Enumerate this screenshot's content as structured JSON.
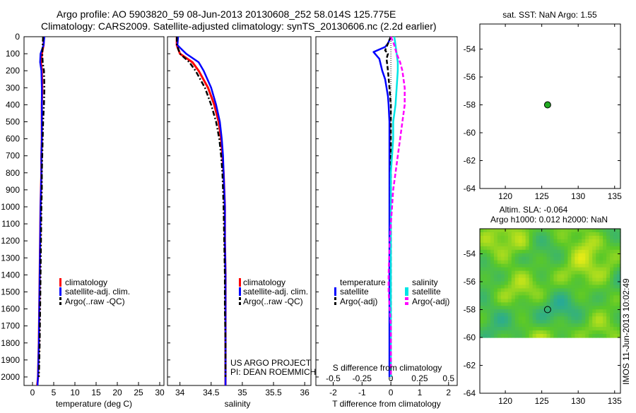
{
  "header": {
    "title_line1": "Argo profile: AO 5903820_59 08-Jun-2013 20130608_252 58.014S 125.775E",
    "title_line2": "Climatology: CARS2009. Satellite-adjusted climatology: synTS_20130606.nc (2.2d earlier)"
  },
  "colors": {
    "climatology": "#ff0000",
    "satellite": "#0000ff",
    "argo": "#000000",
    "salinity_satellite": "#00e5e5",
    "salinity_argo": "#ff00ff",
    "map_marker": "#22aa22"
  },
  "depth_ticks": [
    "0",
    "100",
    "200",
    "300",
    "400",
    "500",
    "600",
    "700",
    "800",
    "900",
    "1000",
    "1100",
    "1200",
    "1300",
    "1400",
    "1500",
    "1600",
    "1700",
    "1800",
    "1900",
    "2000"
  ],
  "chart_data": [
    {
      "type": "line",
      "panel": "temperature",
      "xlabel": "temperature (deg C)",
      "xticks": [
        "0",
        "5",
        "10",
        "15",
        "20",
        "25",
        "30"
      ],
      "xlim": [
        -2,
        31
      ],
      "ylim": [
        2050,
        0
      ],
      "y_axis": "depth (inverted)",
      "series": [
        {
          "name": "climatology",
          "x": [
            2.7,
            2.6,
            2.2,
            2.0,
            2.2,
            2.3,
            2.2,
            2.2,
            2.2,
            2.1,
            2.1,
            2.0,
            1.9,
            1.8,
            1.7,
            1.6,
            1.5,
            1.4,
            1.3,
            1.2,
            1.1
          ],
          "y": [
            0,
            50,
            100,
            150,
            200,
            300,
            400,
            500,
            600,
            700,
            800,
            900,
            1000,
            1200,
            1400,
            1600,
            1800,
            1900,
            2000,
            2030,
            2050
          ]
        },
        {
          "name": "satellite-adj. clim.",
          "x": [
            2.8,
            2.6,
            1.9,
            1.8,
            2.1,
            2.2,
            2.2,
            2.2,
            2.2,
            2.1,
            2.1,
            2.0,
            1.9,
            1.8,
            1.7,
            1.6,
            1.5,
            1.4,
            1.3,
            1.2,
            1.2
          ],
          "y": [
            0,
            50,
            100,
            150,
            200,
            300,
            400,
            500,
            600,
            700,
            800,
            900,
            1000,
            1200,
            1400,
            1600,
            1800,
            1900,
            2000,
            2030,
            2050
          ]
        },
        {
          "name": "Argo(..raw -QC)",
          "x": [
            2.5,
            2.4,
            2.3,
            2.4,
            2.7,
            2.8,
            2.7,
            2.5,
            2.4,
            2.3,
            2.2,
            2.2,
            2.1,
            2.0,
            1.9,
            1.8,
            1.7,
            1.6,
            1.5
          ],
          "y": [
            0,
            50,
            100,
            150,
            200,
            300,
            400,
            500,
            600,
            700,
            800,
            900,
            1000,
            1200,
            1400,
            1600,
            1800,
            1900,
            2000
          ]
        }
      ],
      "legend": [
        "climatology",
        "satellite-adj. clim.",
        "Argo(..raw -QC)"
      ]
    },
    {
      "type": "line",
      "panel": "salinity",
      "xlabel": "salinity",
      "xticks": [
        "34",
        "34.5",
        "35",
        "35.5",
        "36"
      ],
      "xlim": [
        33.8,
        36.1
      ],
      "ylim": [
        2050,
        0
      ],
      "series": [
        {
          "name": "climatology",
          "x": [
            33.95,
            33.95,
            34.0,
            34.2,
            34.3,
            34.45,
            34.55,
            34.62,
            34.66,
            34.68,
            34.7,
            34.71,
            34.72,
            34.72,
            34.73,
            34.73,
            34.73,
            34.73,
            34.73,
            34.73
          ],
          "y": [
            0,
            50,
            100,
            150,
            200,
            300,
            400,
            500,
            600,
            700,
            800,
            900,
            1000,
            1200,
            1400,
            1600,
            1800,
            1900,
            2000,
            2050
          ]
        },
        {
          "name": "satellite-adj. clim.",
          "x": [
            33.97,
            33.96,
            34.1,
            34.3,
            34.38,
            34.5,
            34.58,
            34.64,
            34.67,
            34.69,
            34.7,
            34.71,
            34.72,
            34.72,
            34.73,
            34.73,
            34.73,
            34.73,
            34.73,
            34.73
          ],
          "y": [
            0,
            50,
            100,
            150,
            200,
            300,
            400,
            500,
            600,
            700,
            800,
            900,
            1000,
            1200,
            1400,
            1600,
            1800,
            1900,
            2000,
            2050
          ]
        },
        {
          "name": "Argo(..raw -QC)",
          "x": [
            33.95,
            33.95,
            34.0,
            34.15,
            34.25,
            34.4,
            34.5,
            34.58,
            34.63,
            34.66,
            34.68,
            34.69,
            34.7,
            34.71,
            34.72,
            34.72,
            34.73,
            34.73,
            34.73
          ],
          "y": [
            0,
            50,
            100,
            150,
            200,
            300,
            400,
            500,
            600,
            700,
            800,
            900,
            1000,
            1200,
            1400,
            1600,
            1800,
            1900,
            2000
          ]
        }
      ],
      "legend": [
        "climatology",
        "satellite-adj. clim.",
        "Argo(..raw -QC)"
      ],
      "annotation": [
        "US ARGO PROJECT",
        "PI: DEAN ROEMMICH"
      ]
    },
    {
      "type": "line",
      "panel": "difference",
      "xlabel": "T difference from climatology",
      "top_label": "S difference from climatology",
      "xticks": [
        "-2",
        "-1",
        "0",
        "1",
        "2"
      ],
      "xlim": [
        -2.6,
        2.3
      ],
      "top_ticks": [
        "-0.5",
        "-0.25",
        "0",
        "0.25",
        "0.5"
      ],
      "top_lim": [
        -0.65,
        0.575
      ],
      "ylim": [
        2050,
        0
      ],
      "series": [
        {
          "name": "temperature satellite",
          "axis": "T",
          "x": [
            0.0,
            -0.1,
            -0.2,
            -0.6,
            -0.4,
            -0.3,
            -0.2,
            -0.15,
            -0.1,
            -0.08,
            -0.05,
            -0.05,
            -0.05,
            -0.05,
            -0.05,
            -0.05,
            -0.05,
            -0.05,
            -0.05,
            -0.05,
            -0.05,
            -0.05
          ],
          "y": [
            0,
            40,
            60,
            90,
            130,
            200,
            250,
            300,
            350,
            400,
            500,
            600,
            700,
            800,
            900,
            1000,
            1200,
            1400,
            1600,
            1800,
            1900,
            2000
          ]
        },
        {
          "name": "temperature Argo(-adj)",
          "axis": "T",
          "x": [
            0.0,
            -0.1,
            -0.2,
            -0.1,
            -0.15,
            -0.1,
            -0.05,
            0.0,
            0.0,
            0.0,
            0.0,
            0.0,
            0.0,
            0.0,
            0.0,
            0.0,
            0.0,
            0.0,
            0.0,
            0.0,
            0.0
          ],
          "y": [
            0,
            40,
            80,
            100,
            130,
            200,
            300,
            400,
            500,
            600,
            700,
            800,
            900,
            1000,
            1100,
            1200,
            1400,
            1600,
            1800,
            1900,
            2000
          ]
        },
        {
          "name": "salinity satellite",
          "axis": "S",
          "x": [
            0.03,
            0.04,
            0.05,
            0.06,
            0.06,
            0.05,
            0.04,
            0.02,
            0.02,
            0.01,
            0.0,
            0.0,
            0.0,
            0.0,
            0.0,
            0.0,
            0.0,
            0.0,
            0.0,
            0.0,
            0.0,
            0.0
          ],
          "y": [
            0,
            50,
            100,
            150,
            200,
            300,
            400,
            500,
            600,
            700,
            800,
            900,
            1000,
            1100,
            1200,
            1400,
            1500,
            1600,
            1700,
            1800,
            1900,
            2000
          ]
        },
        {
          "name": "salinity Argo(-adj)",
          "axis": "S",
          "x": [
            0.0,
            0.03,
            0.05,
            0.08,
            0.1,
            0.12,
            0.12,
            0.1,
            0.08,
            0.06,
            0.04,
            0.02,
            0.01,
            0.0,
            -0.01,
            -0.02,
            -0.02,
            -0.01,
            0.0,
            0.0,
            0.0,
            0.0
          ],
          "y": [
            0,
            50,
            100,
            150,
            200,
            300,
            400,
            500,
            600,
            700,
            800,
            900,
            1000,
            1100,
            1200,
            1400,
            1500,
            1600,
            1700,
            1800,
            1900,
            2000
          ]
        }
      ],
      "legend_temperature": {
        "title": "temperature",
        "items": [
          "satellite",
          "Argo(-adj)"
        ]
      },
      "legend_salinity": {
        "title": "salinity",
        "items": [
          "satellite",
          "Argo(-adj)"
        ]
      }
    },
    {
      "type": "scatter",
      "panel": "sst_map",
      "title": "sat. SST: NaN Argo: 1.55",
      "xticks": [
        "120",
        "125",
        "130",
        "135"
      ],
      "yticks": [
        "-54",
        "-56",
        "-58",
        "-60",
        "-62",
        "-64"
      ],
      "xlim": [
        116.5,
        135.8
      ],
      "ylim": [
        -64,
        -52.2
      ],
      "points": [
        {
          "lon": 125.8,
          "lat": -58.0
        }
      ]
    },
    {
      "type": "heatmap",
      "panel": "sla_map",
      "title_line1": "Altim. SLA: -0.064",
      "title_line2": "Argo h1000: 0.012 h2000: NaN",
      "xticks": [
        "120",
        "125",
        "130",
        "135"
      ],
      "yticks": [
        "-54",
        "-56",
        "-58",
        "-60",
        "-62",
        "-64"
      ],
      "xlim": [
        116.5,
        135.8
      ],
      "ylim": [
        -64,
        -52.2
      ],
      "data_extent_lat": [
        -60.0,
        -52.2
      ],
      "points": [
        {
          "lon": 125.8,
          "lat": -58.0
        }
      ]
    }
  ],
  "side_stamp": "IMOS 11-Jun-2013 10:02:49"
}
